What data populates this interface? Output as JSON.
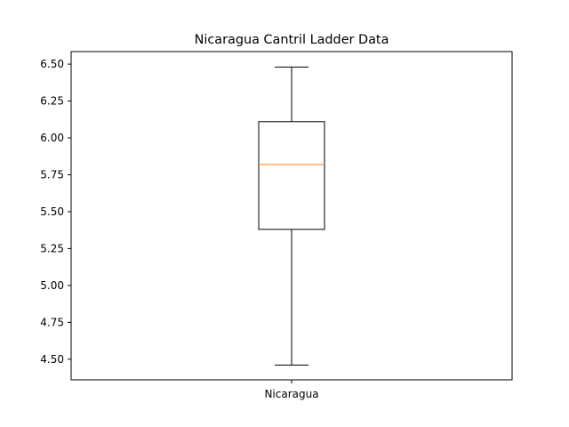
{
  "chart_data": {
    "type": "box",
    "title": "Nicaragua Cantril Ladder Data",
    "xlabel": "",
    "ylabel": "",
    "categories": [
      "Nicaragua"
    ],
    "series": [
      {
        "whisker_low": 4.46,
        "q1": 5.38,
        "median": 5.82,
        "q3": 6.11,
        "whisker_high": 6.48
      }
    ],
    "ylim": [
      4.36,
      6.585
    ],
    "yticks": [
      4.5,
      4.75,
      5.0,
      5.25,
      5.5,
      5.75,
      6.0,
      6.25,
      6.5
    ],
    "ytick_labels": [
      "4.50",
      "4.75",
      "5.00",
      "5.25",
      "5.50",
      "5.75",
      "6.00",
      "6.25",
      "6.50"
    ],
    "grid": false,
    "colors": {
      "box": "#000000",
      "median": "#ff7f0e",
      "axes": "#000000",
      "background": "#ffffff"
    }
  }
}
